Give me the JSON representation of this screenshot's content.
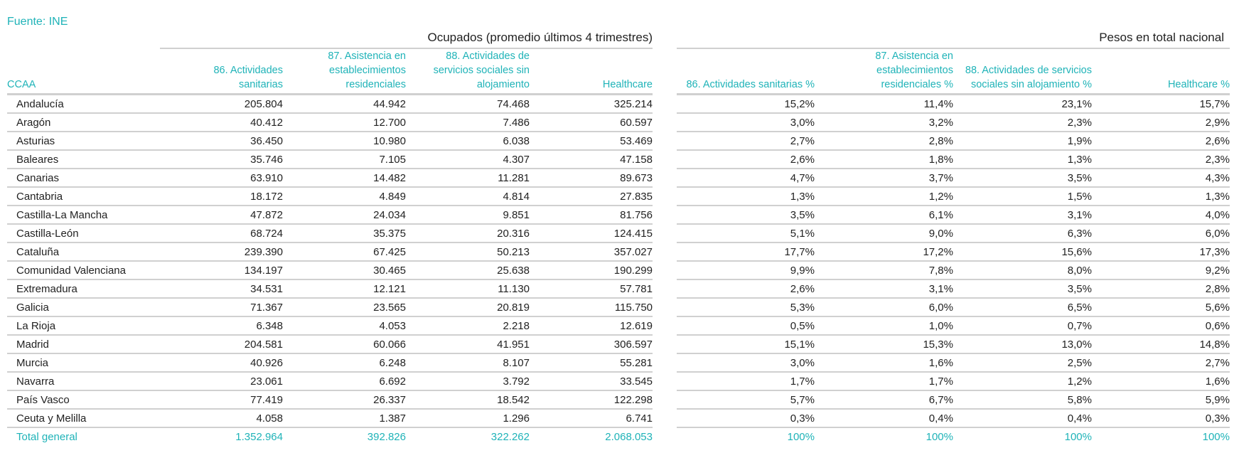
{
  "source": "Fuente: INE",
  "left": {
    "title": "Ocupados (promedio últimos 4 trimestres)",
    "headers": [
      "CCAA",
      "86. Actividades sanitarias",
      "87. Asistencia en establecimientos residenciales",
      "88. Actividades de servicios sociales sin alojamiento",
      "Healthcare"
    ]
  },
  "right": {
    "title": "Pesos en total nacional",
    "headers": [
      "86. Actividades sanitarias %",
      "87. Asistencia en establecimientos residenciales %",
      "88. Actividades de servicios sociales sin alojamiento %",
      "Healthcare %"
    ]
  },
  "rows": [
    {
      "ccaa": "Andalucía",
      "v": [
        "205.804",
        "44.942",
        "74.468",
        "325.214"
      ],
      "p": [
        "15,2%",
        "11,4%",
        "23,1%",
        "15,7%"
      ]
    },
    {
      "ccaa": "Aragón",
      "v": [
        "40.412",
        "12.700",
        "7.486",
        "60.597"
      ],
      "p": [
        "3,0%",
        "3,2%",
        "2,3%",
        "2,9%"
      ]
    },
    {
      "ccaa": "Asturias",
      "v": [
        "36.450",
        "10.980",
        "6.038",
        "53.469"
      ],
      "p": [
        "2,7%",
        "2,8%",
        "1,9%",
        "2,6%"
      ]
    },
    {
      "ccaa": "Baleares",
      "v": [
        "35.746",
        "7.105",
        "4.307",
        "47.158"
      ],
      "p": [
        "2,6%",
        "1,8%",
        "1,3%",
        "2,3%"
      ]
    },
    {
      "ccaa": "Canarias",
      "v": [
        "63.910",
        "14.482",
        "11.281",
        "89.673"
      ],
      "p": [
        "4,7%",
        "3,7%",
        "3,5%",
        "4,3%"
      ]
    },
    {
      "ccaa": "Cantabria",
      "v": [
        "18.172",
        "4.849",
        "4.814",
        "27.835"
      ],
      "p": [
        "1,3%",
        "1,2%",
        "1,5%",
        "1,3%"
      ]
    },
    {
      "ccaa": "Castilla-La Mancha",
      "v": [
        "47.872",
        "24.034",
        "9.851",
        "81.756"
      ],
      "p": [
        "3,5%",
        "6,1%",
        "3,1%",
        "4,0%"
      ]
    },
    {
      "ccaa": "Castilla-León",
      "v": [
        "68.724",
        "35.375",
        "20.316",
        "124.415"
      ],
      "p": [
        "5,1%",
        "9,0%",
        "6,3%",
        "6,0%"
      ]
    },
    {
      "ccaa": "Cataluña",
      "v": [
        "239.390",
        "67.425",
        "50.213",
        "357.027"
      ],
      "p": [
        "17,7%",
        "17,2%",
        "15,6%",
        "17,3%"
      ]
    },
    {
      "ccaa": "Comunidad Valenciana",
      "v": [
        "134.197",
        "30.465",
        "25.638",
        "190.299"
      ],
      "p": [
        "9,9%",
        "7,8%",
        "8,0%",
        "9,2%"
      ]
    },
    {
      "ccaa": "Extremadura",
      "v": [
        "34.531",
        "12.121",
        "11.130",
        "57.781"
      ],
      "p": [
        "2,6%",
        "3,1%",
        "3,5%",
        "2,8%"
      ]
    },
    {
      "ccaa": "Galicia",
      "v": [
        "71.367",
        "23.565",
        "20.819",
        "115.750"
      ],
      "p": [
        "5,3%",
        "6,0%",
        "6,5%",
        "5,6%"
      ]
    },
    {
      "ccaa": "La Rioja",
      "v": [
        "6.348",
        "4.053",
        "2.218",
        "12.619"
      ],
      "p": [
        "0,5%",
        "1,0%",
        "0,7%",
        "0,6%"
      ]
    },
    {
      "ccaa": "Madrid",
      "v": [
        "204.581",
        "60.066",
        "41.951",
        "306.597"
      ],
      "p": [
        "15,1%",
        "15,3%",
        "13,0%",
        "14,8%"
      ]
    },
    {
      "ccaa": "Murcia",
      "v": [
        "40.926",
        "6.248",
        "8.107",
        "55.281"
      ],
      "p": [
        "3,0%",
        "1,6%",
        "2,5%",
        "2,7%"
      ]
    },
    {
      "ccaa": "Navarra",
      "v": [
        "23.061",
        "6.692",
        "3.792",
        "33.545"
      ],
      "p": [
        "1,7%",
        "1,7%",
        "1,2%",
        "1,6%"
      ]
    },
    {
      "ccaa": "País Vasco",
      "v": [
        "77.419",
        "26.337",
        "18.542",
        "122.298"
      ],
      "p": [
        "5,7%",
        "6,7%",
        "5,8%",
        "5,9%"
      ]
    },
    {
      "ccaa": "Ceuta y Melilla",
      "v": [
        "4.058",
        "1.387",
        "1.296",
        "6.741"
      ],
      "p": [
        "0,3%",
        "0,4%",
        "0,4%",
        "0,3%"
      ]
    }
  ],
  "total": {
    "ccaa": "Total general",
    "v": [
      "1.352.964",
      "392.826",
      "322.262",
      "2.068.053"
    ],
    "p": [
      "100%",
      "100%",
      "100%",
      "100%"
    ]
  },
  "colors": {
    "accent": "#1fb3b8",
    "rule": "#d0d0d0",
    "text": "#222222"
  }
}
